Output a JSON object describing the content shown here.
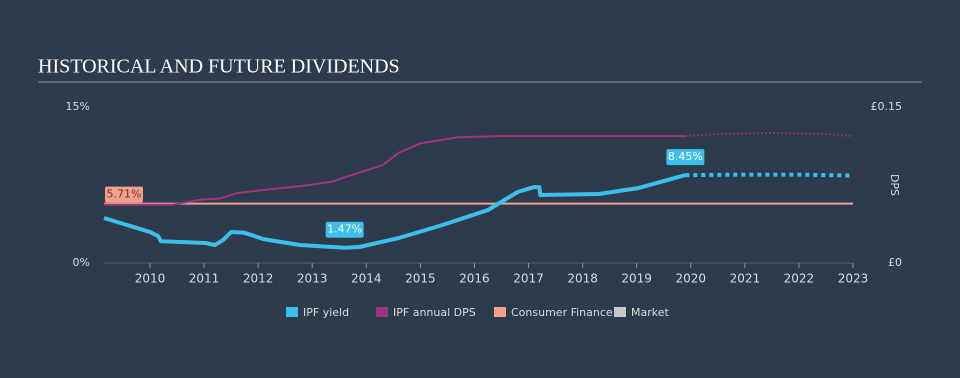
{
  "chart_data": {
    "type": "line",
    "title": "HISTORICAL AND FUTURE DIVIDENDS",
    "y2label": "DPS",
    "xlim": [
      2009.15,
      2023
    ],
    "xticks": [
      2010,
      2011,
      2012,
      2013,
      2014,
      2015,
      2016,
      2017,
      2018,
      2019,
      2020,
      2021,
      2022,
      2023
    ],
    "ylim": [
      0,
      15
    ],
    "yticks": [
      {
        "value": 0,
        "label": "0%"
      },
      {
        "value": 15,
        "label": "15%"
      }
    ],
    "y2lim": [
      0,
      0.15
    ],
    "y2ticks": [
      {
        "value": 0,
        "label": "£0"
      },
      {
        "value": 0.15,
        "label": "£0.15"
      }
    ],
    "series": [
      {
        "name": "IPF yield",
        "color": "#3dbfec",
        "x": [
          2009.15,
          2010,
          2010.15,
          2010.2,
          2011.03,
          2011.2,
          2011.35,
          2011.5,
          2011.75,
          2012.1,
          2012.77,
          2013.6,
          2013.87,
          2014.6,
          2015.35,
          2016.25,
          2016.8,
          2017.1,
          2017.2,
          2017.22,
          2018.3,
          2019.03,
          2019.9
        ],
        "values": [
          4.33,
          2.98,
          2.6,
          2.1,
          1.92,
          1.73,
          2.2,
          2.98,
          2.9,
          2.3,
          1.73,
          1.47,
          1.54,
          2.4,
          3.56,
          5.1,
          6.83,
          7.3,
          7.3,
          6.54,
          6.63,
          7.2,
          8.45
        ],
        "value_labels": [
          null,
          null,
          null,
          null,
          null,
          null,
          null,
          null,
          null,
          null,
          null,
          "1.47%",
          null,
          null,
          null,
          null,
          null,
          null,
          null,
          null,
          null,
          null,
          "8.45%"
        ],
        "forecast": {
          "x": [
            2020,
            2021,
            2022,
            2023
          ],
          "values": [
            8.45,
            8.5,
            8.5,
            8.4
          ]
        }
      },
      {
        "name": "IPF annual DPS",
        "color": "#a0357f",
        "axis": "y2",
        "x": [
          2009.15,
          2010.4,
          2010.95,
          2011.3,
          2011.6,
          2012.05,
          2012.8,
          2013.35,
          2013.7,
          2014.3,
          2014.6,
          2015.0,
          2015.7,
          2016.5,
          2019.9
        ],
        "values": [
          0.056,
          0.056,
          0.061,
          0.062,
          0.067,
          0.07,
          0.074,
          0.078,
          0.084,
          0.094,
          0.106,
          0.115,
          0.121,
          0.122,
          0.122
        ],
        "forecast": {
          "x": [
            2020.5,
            2021.5,
            2022.5,
            2023
          ],
          "values": [
            0.124,
            0.125,
            0.124,
            0.122
          ]
        }
      },
      {
        "name": "Consumer Finance",
        "color": "#f0a08c",
        "x": [
          2009.15,
          2023
        ],
        "values": [
          5.71,
          5.71
        ],
        "value_labels": [
          "5.71%",
          null
        ]
      },
      {
        "name": "Market",
        "color": "#c8c8c8"
      }
    ]
  }
}
